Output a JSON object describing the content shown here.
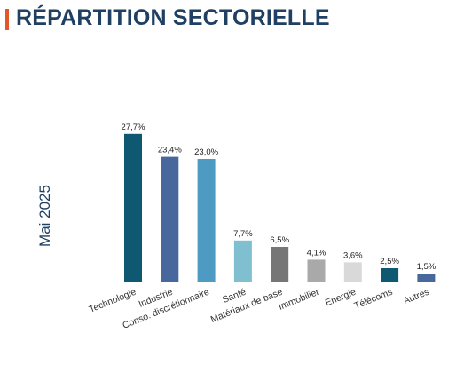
{
  "header": {
    "title": "RÉPARTITION SECTORIELLE",
    "accent_color": "#e0572a"
  },
  "chart_data": {
    "type": "bar",
    "ylabel": "Mai 2025",
    "categories": [
      "Technologie",
      "Industrie",
      "Conso. discrétionnaire",
      "Santé",
      "Matériaux de base",
      "Immobilier",
      "Energie",
      "Télécoms",
      "Autres"
    ],
    "values": [
      27.7,
      23.4,
      23.0,
      7.7,
      6.5,
      4.1,
      3.6,
      2.5,
      1.5
    ],
    "data_labels": [
      "27,7%",
      "23,4%",
      "23,0%",
      "7,7%",
      "6,5%",
      "4,1%",
      "3,6%",
      "2,5%",
      "1,5%"
    ],
    "colors": [
      "#0f5872",
      "#48679d",
      "#4d9bc2",
      "#7fbfd0",
      "#767676",
      "#a9a9a9",
      "#d9d9d9",
      "#0f5872",
      "#48679d"
    ],
    "ylim": [
      0,
      30
    ],
    "grid": false,
    "legend": "none"
  }
}
